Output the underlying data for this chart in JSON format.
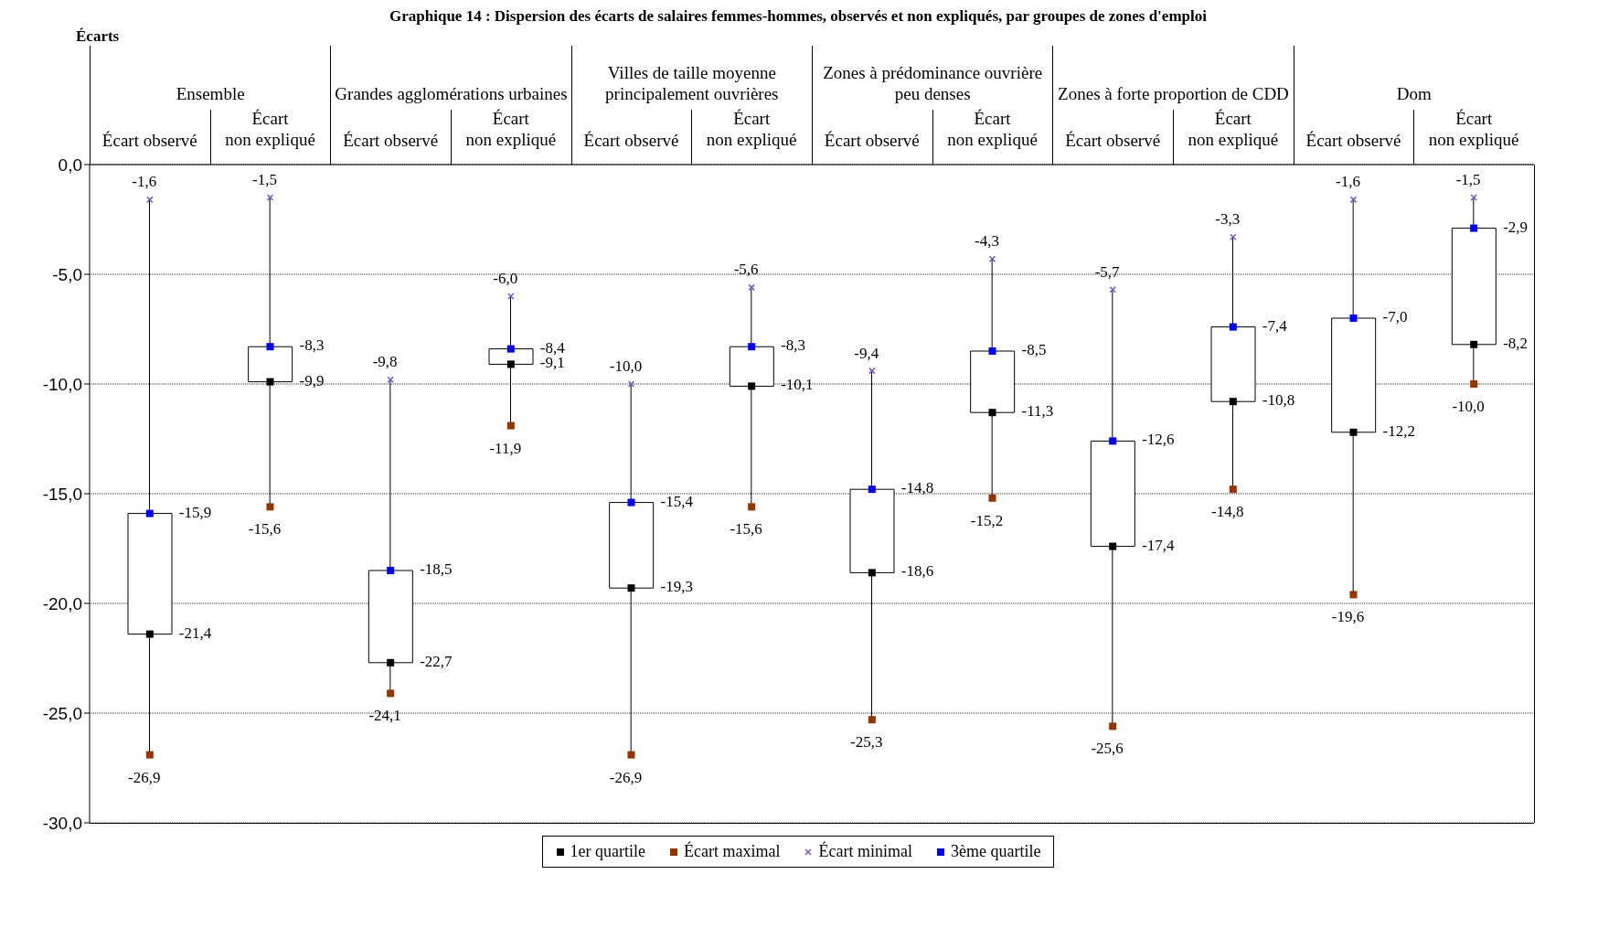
{
  "chart_data": {
    "type": "box",
    "title": "Graphique 14 : Dispersion des écarts de salaires femmes-hommes, observés et non expliqués, par groupes de zones d'emploi",
    "ylabel": "Écarts",
    "annotations": [
      "Ensemble",
      "Grandes agglomérations urbaines",
      "Villes de taille moyenne principalement ouvrières",
      "Zones à prédominance ouvrière peu denses",
      "Zones à forte proportion de CDD",
      "Dom"
    ],
    "categories": [
      "Écart observé",
      "Écart non expliqué",
      "Écart observé",
      "Écart non expliqué",
      "Écart observé",
      "Écart non expliqué",
      "Écart observé",
      "Écart non expliqué",
      "Écart observé",
      "Écart non expliqué",
      "Écart observé",
      "Écart non expliqué"
    ],
    "boxes": [
      {
        "low": -26.9,
        "q1": -21.4,
        "q3": -15.9,
        "high": -1.6
      },
      {
        "low": -15.6,
        "q1": -9.9,
        "q3": -8.3,
        "high": -1.5
      },
      {
        "low": -24.1,
        "q1": -22.7,
        "q3": -18.5,
        "high": -9.8
      },
      {
        "low": -11.9,
        "q1": -9.1,
        "q3": -8.4,
        "high": -6.0
      },
      {
        "low": -26.9,
        "q1": -19.3,
        "q3": -15.4,
        "high": -10.0
      },
      {
        "low": -15.6,
        "q1": -10.1,
        "q3": -8.3,
        "high": -5.6
      },
      {
        "low": -25.3,
        "q1": -18.6,
        "q3": -14.8,
        "high": -9.4
      },
      {
        "low": -15.2,
        "q1": -11.3,
        "q3": -8.5,
        "high": -4.3
      },
      {
        "low": -25.6,
        "q1": -17.4,
        "q3": -12.6,
        "high": -5.7
      },
      {
        "low": -14.8,
        "q1": -10.8,
        "q3": -7.4,
        "high": -3.3
      },
      {
        "low": -19.6,
        "q1": -12.2,
        "q3": -7.0,
        "high": -1.6
      },
      {
        "low": -10.0,
        "q1": -8.2,
        "q3": -2.9,
        "high": -1.5
      }
    ],
    "series": [
      {
        "name": "1er quartile",
        "type": "scatter",
        "marker": "square",
        "color": "#000000",
        "values": [
          -21.4,
          -9.9,
          -22.7,
          -9.1,
          -19.3,
          -10.1,
          -18.6,
          -11.3,
          -17.4,
          -10.8,
          -12.2,
          -8.2
        ],
        "value_labels": [
          "-21,4",
          "-9,9",
          "-22,7",
          "-9,1",
          "-19,3",
          "-10,1",
          "-18,6",
          "-11,3",
          "-17,4",
          "-10,8",
          "-12,2",
          "-8,2"
        ]
      },
      {
        "name": "Écart maximal",
        "type": "scatter",
        "marker": "square",
        "color": "#993300",
        "values": [
          -26.9,
          -15.6,
          -24.1,
          -11.9,
          -26.9,
          -15.6,
          -25.3,
          -15.2,
          -25.6,
          -14.8,
          -19.6,
          -10.0
        ],
        "value_labels": [
          "-26,9",
          "-15,6",
          "-24,1",
          "-11,9",
          "-26,9",
          "-15,6",
          "-25,3",
          "-15,2",
          "-25,6",
          "-14,8",
          "-19,6",
          "-10,0"
        ]
      },
      {
        "name": "Écart minimal",
        "type": "scatter",
        "marker": "cross",
        "color": "#6a5acd",
        "values": [
          -1.6,
          -1.5,
          -9.8,
          -6.0,
          -10.0,
          -5.6,
          -9.4,
          -4.3,
          -5.7,
          -3.3,
          -1.6,
          -1.5
        ],
        "value_labels": [
          "-1,6",
          "-1,5",
          "-9,8",
          "-6,0",
          "-10,0",
          "-5,6",
          "-9,4",
          "-4,3",
          "-5,7",
          "-3,3",
          "-1,6",
          "-1,5"
        ]
      },
      {
        "name": "3ème quartile",
        "type": "scatter",
        "marker": "square",
        "color": "#0000ff",
        "values": [
          -15.9,
          -8.3,
          -18.5,
          -8.4,
          -15.4,
          -8.3,
          -14.8,
          -8.5,
          -12.6,
          -7.4,
          -7.0,
          -2.9
        ],
        "value_labels": [
          "-15,9",
          "-8,3",
          "-18,5",
          "-8,4",
          "-15,4",
          "-8,3",
          "-14,8",
          "-8,5",
          "-12,6",
          "-7,4",
          "-7,0",
          "-2,9"
        ]
      }
    ],
    "ylim": [
      -30,
      0
    ],
    "yticks": [
      {
        "value": -30,
        "label": "-30,0"
      },
      {
        "value": -25,
        "label": "-25,0"
      },
      {
        "value": -20,
        "label": "-20,0"
      },
      {
        "value": -15,
        "label": "-15,0"
      },
      {
        "value": -10,
        "label": "-10,0"
      },
      {
        "value": -5,
        "label": "-5,0"
      },
      {
        "value": 0,
        "label": "0,0"
      }
    ],
    "grid": "y",
    "legend": "bottom"
  }
}
